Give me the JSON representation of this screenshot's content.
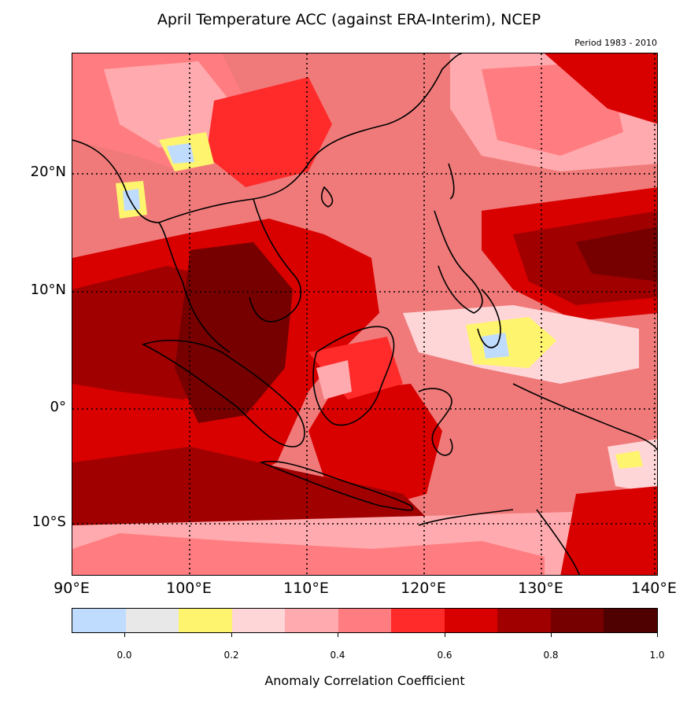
{
  "title": "April Temperature ACC (against ERA-Interim), NCEP",
  "period": "Period 1983 - 2010",
  "map": {
    "lon_range": [
      90,
      140
    ],
    "lat_range": [
      -14.5,
      30
    ],
    "lat_labels": [
      "20°N",
      "10°N",
      "0°",
      "10°S"
    ],
    "lon_labels": [
      "90°E",
      "100°E",
      "110°E",
      "120°E",
      "130°E",
      "140°E"
    ],
    "grid": "dotted"
  },
  "colorbar": {
    "label": "Anomaly Correlation Coefficient",
    "ticks": [
      "0.0",
      "0.2",
      "0.4",
      "0.6",
      "0.8",
      "1.0"
    ],
    "bins": [
      "#bfdcff",
      "#e8e8e8",
      "#fff46e",
      "#ffd6d8",
      "#ffaaae",
      "#ff7c80",
      "#ff2b2b",
      "#d90000",
      "#a00000",
      "#760000",
      "#4f0000"
    ]
  },
  "colors": {
    "background": "#f08080",
    "land": "#000000"
  }
}
